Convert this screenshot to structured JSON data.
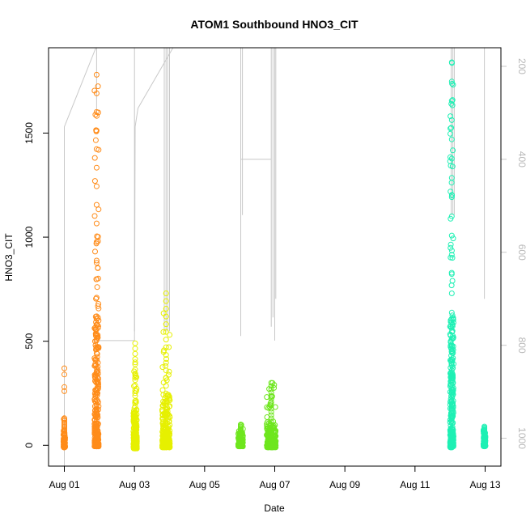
{
  "chart_data": {
    "type": "scatter",
    "title": "ATOM1 Southbound HNO3_CIT",
    "xlabel": "Date",
    "ylabel": "HNO3_CIT",
    "x_unit": "days since Aug 01",
    "xlim": [
      -0.45,
      12.45
    ],
    "ylim": [
      -100,
      1910
    ],
    "x_ticks": [
      {
        "value": 0,
        "label": "Aug 01"
      },
      {
        "value": 2,
        "label": "Aug 03"
      },
      {
        "value": 4,
        "label": "Aug 05"
      },
      {
        "value": 6,
        "label": "Aug 07"
      },
      {
        "value": 8,
        "label": "Aug 09"
      },
      {
        "value": 10,
        "label": "Aug 11"
      },
      {
        "value": 12,
        "label": "Aug 13"
      }
    ],
    "y_ticks": [
      0,
      500,
      1000,
      1500
    ],
    "y2_lim": [
      1060,
      160
    ],
    "y2_ticks": [
      200,
      400,
      600,
      800,
      1000
    ],
    "y2_color": "#c8c8c8",
    "grid": false,
    "series": [
      {
        "name": "",
        "color": "#ff8c1a",
        "clusters": [
          {
            "x": 0.0,
            "width": 0.05,
            "min": -10,
            "max": 130,
            "n": 40,
            "max_outlier": 370
          },
          {
            "x": 0.92,
            "width": 0.12,
            "min": -5,
            "max": 1780,
            "n": 260
          }
        ]
      },
      {
        "name": "",
        "color": "#e6f000",
        "clusters": [
          {
            "x": 2.02,
            "width": 0.1,
            "min": -15,
            "max": 490,
            "n": 150
          },
          {
            "x": 2.9,
            "width": 0.22,
            "min": -10,
            "max": 730,
            "n": 200
          }
        ]
      },
      {
        "name": "",
        "color": "#6ee61e",
        "clusters": [
          {
            "x": 5.03,
            "width": 0.14,
            "min": -5,
            "max": 100,
            "n": 70
          },
          {
            "x": 5.9,
            "width": 0.26,
            "min": -10,
            "max": 300,
            "n": 160
          }
        ]
      },
      {
        "name": "",
        "color": "#1ef0b4",
        "clusters": [
          {
            "x": 11.05,
            "width": 0.1,
            "min": -10,
            "max": 1840,
            "n": 260
          },
          {
            "x": 11.98,
            "width": 0.06,
            "min": -5,
            "max": 90,
            "n": 40
          }
        ]
      }
    ]
  }
}
